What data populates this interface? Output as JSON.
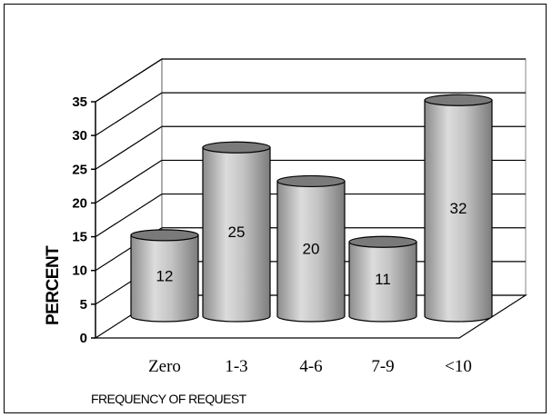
{
  "chart_data": {
    "type": "bar",
    "style": "3d-cylinder",
    "categories": [
      "Zero",
      "1-3",
      "4-6",
      "7-9",
      "<10"
    ],
    "values": [
      12,
      25,
      20,
      11,
      32
    ],
    "data_labels": [
      "12",
      "25",
      "20",
      "11",
      "32"
    ],
    "title": "",
    "xlabel": "FREQUENCY OF REQUEST",
    "ylabel": "PERCENT",
    "ylim": [
      0,
      35
    ],
    "yticks": [
      "0",
      "5",
      "10",
      "15",
      "20",
      "25",
      "30",
      "35"
    ],
    "grid": true,
    "colors": {
      "bar": "#b5b5b5",
      "bar_dark": "#7a7a7a",
      "bar_light": "#e2e2e2",
      "grid": "#000000"
    }
  }
}
